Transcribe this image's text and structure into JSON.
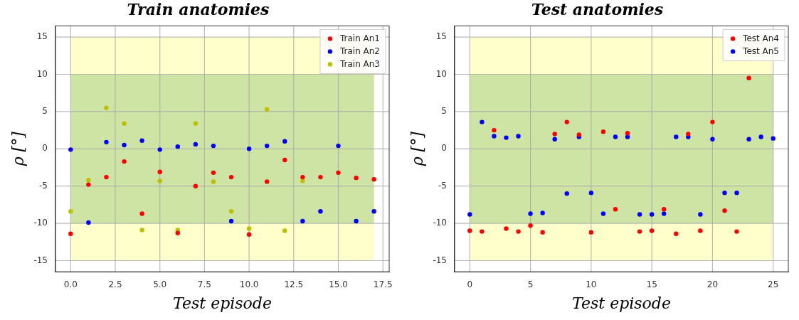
{
  "chart_data": [
    {
      "type": "scatter",
      "title": "Train anatomies",
      "xlabel": "Test episode",
      "ylabel": "ρ [°]",
      "xlim": [
        -0.85,
        17.85
      ],
      "xticks": [
        {
          "value": 0,
          "label": "0.0"
        },
        {
          "value": 2.5,
          "label": "2.5"
        },
        {
          "value": 5,
          "label": "5.0"
        },
        {
          "value": 7.5,
          "label": "7.5"
        },
        {
          "value": 10,
          "label": "10.0"
        },
        {
          "value": 12.5,
          "label": "12.5"
        },
        {
          "value": 15,
          "label": "15.0"
        },
        {
          "value": 17.5,
          "label": "17.5"
        }
      ],
      "ylim": [
        -16.5,
        16.5
      ],
      "yticks": [
        -15,
        -10,
        -5,
        0,
        5,
        10,
        15
      ],
      "grid": true,
      "legend": "top right",
      "marker": "circle",
      "bands": [
        {
          "axis": "y",
          "from": -15,
          "to": 15,
          "color": "#ffffcc"
        },
        {
          "axis": "y",
          "from": -10,
          "to": 10,
          "color": "#cde4a5"
        }
      ],
      "series": [
        {
          "name": "Train An1",
          "color": "#ff0000",
          "x": [
            0,
            1,
            2,
            3,
            4,
            5,
            6,
            7,
            8,
            9,
            10,
            11,
            12,
            13,
            14,
            15,
            16,
            17
          ],
          "values": [
            -11.4,
            -4.8,
            -3.8,
            -1.7,
            -8.7,
            -3.1,
            -11.3,
            -5.0,
            -3.2,
            -3.8,
            -11.5,
            -4.4,
            -1.5,
            -3.8,
            -3.8,
            -3.2,
            -3.9,
            -4.1
          ]
        },
        {
          "name": "Train An2",
          "color": "#0000ff",
          "x": [
            0,
            1,
            2,
            3,
            4,
            5,
            6,
            7,
            8,
            9,
            10,
            11,
            12,
            13,
            14,
            15,
            16,
            17
          ],
          "values": [
            -0.1,
            -9.9,
            0.9,
            0.5,
            1.1,
            -0.1,
            0.3,
            0.6,
            0.4,
            -9.7,
            0.0,
            0.4,
            1.0,
            -9.7,
            -8.4,
            0.4,
            -9.7,
            -8.4
          ]
        },
        {
          "name": "Train An3",
          "color": "#bfbf00",
          "x": [
            0,
            1,
            2,
            3,
            4,
            5,
            6,
            7,
            8,
            9,
            10,
            11,
            12,
            13
          ],
          "values": [
            -8.4,
            -4.2,
            5.5,
            3.4,
            -10.9,
            -4.3,
            -10.9,
            3.4,
            -4.4,
            -8.4,
            -10.7,
            5.3,
            -11.0,
            -4.3
          ]
        }
      ]
    },
    {
      "type": "scatter",
      "title": "Test anatomies",
      "xlabel": "Test episode",
      "ylabel": "ρ [°]",
      "xlim": [
        -1.25,
        26.25
      ],
      "xticks": [
        0,
        5,
        10,
        15,
        20,
        25
      ],
      "ylim": [
        -16.5,
        16.5
      ],
      "yticks": [
        -15,
        -10,
        -5,
        0,
        5,
        10,
        15
      ],
      "grid": true,
      "legend": "top right",
      "marker": "circle",
      "bands": [
        {
          "axis": "y",
          "from": -15,
          "to": 15,
          "color": "#ffffcc"
        },
        {
          "axis": "y",
          "from": -10,
          "to": 10,
          "color": "#cde4a5"
        }
      ],
      "series": [
        {
          "name": "Test An4",
          "color": "#ff0000",
          "x": [
            0,
            1,
            2,
            3,
            4,
            5,
            6,
            7,
            8,
            9,
            10,
            11,
            12,
            13,
            14,
            15,
            16,
            17,
            18,
            19,
            20,
            21,
            22,
            23
          ],
          "values": [
            -11.0,
            -11.1,
            2.5,
            -10.7,
            -11.1,
            -10.3,
            -11.2,
            2.0,
            3.6,
            1.9,
            -11.2,
            2.3,
            -8.1,
            2.1,
            -11.1,
            -11.0,
            -8.1,
            -11.4,
            2.0,
            -11.0,
            3.6,
            -8.3,
            -11.1,
            9.5
          ]
        },
        {
          "name": "Test An5",
          "color": "#0000ff",
          "x": [
            0,
            1,
            2,
            3,
            4,
            5,
            6,
            7,
            8,
            9,
            10,
            11,
            12,
            13,
            14,
            15,
            16,
            17,
            18,
            19,
            20,
            21,
            22,
            23,
            24,
            25
          ],
          "values": [
            -8.8,
            3.6,
            1.7,
            1.5,
            1.7,
            -8.7,
            -8.6,
            1.3,
            -6.0,
            1.6,
            -5.9,
            -8.7,
            1.6,
            1.6,
            -8.8,
            -8.8,
            -8.7,
            1.6,
            1.6,
            -8.8,
            1.3,
            -5.9,
            -5.9,
            1.3,
            1.6,
            1.4
          ]
        }
      ]
    }
  ]
}
